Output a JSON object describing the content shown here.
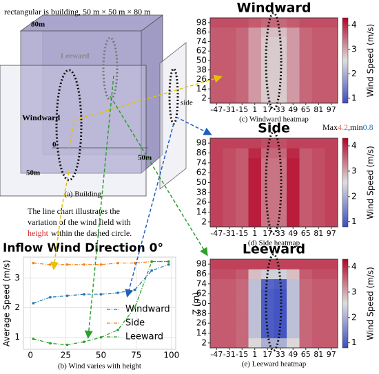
{
  "diagram": {
    "heading": "rectangular is building, 50 m  × 50 m × 80 m",
    "labels": {
      "height": "80m",
      "leeward": "Leeward",
      "windward": "Windward",
      "side": "side",
      "origin": "0",
      "width_left": "50m",
      "width_right": "50m"
    },
    "caption": "(a) Building",
    "note": {
      "lines": [
        "The line chart illustrates the",
        "variation of the wind field with"
      ],
      "highlight": "height",
      "after": "within the dashed circle."
    },
    "range_note": {
      "max_label": "Max",
      "max": 4.2,
      "min_label": ",min",
      "min": 0.8
    }
  },
  "chart_data": [
    {
      "type": "line",
      "title": "Inflow Wind Direction 0°",
      "ylabel": "Average Speed (m/s)",
      "caption": "(b) Wind varies with height",
      "x": [
        2,
        14,
        26,
        38,
        50,
        62,
        74,
        86,
        98
      ],
      "series": [
        {
          "name": "Windward",
          "color": "#1f77b4",
          "values": [
            2.15,
            2.35,
            2.4,
            2.45,
            2.45,
            2.5,
            2.6,
            3.25,
            3.45
          ]
        },
        {
          "name": "Side",
          "color": "#ff7f0e",
          "values": [
            3.5,
            3.45,
            3.45,
            3.45,
            3.45,
            3.5,
            3.5,
            3.55,
            3.55
          ]
        },
        {
          "name": "Leeward",
          "color": "#2ca02c",
          "values": [
            0.95,
            0.8,
            0.75,
            0.85,
            1.0,
            1.25,
            2.0,
            3.55,
            3.55
          ]
        }
      ],
      "xlim": [
        -5,
        103
      ],
      "xticks": [
        0,
        25,
        50,
        75,
        100
      ],
      "ylim": [
        0.6,
        3.7
      ],
      "yticks": [
        1,
        2,
        3
      ],
      "grid": true,
      "legend": "lower-right"
    },
    {
      "type": "heatmap",
      "title": "Windward",
      "caption": "(c) Windward heatmap",
      "clabel": "Wind Speed (m/s)",
      "colormap": "coolwarm",
      "x": [
        -47,
        -31,
        -15,
        1,
        17,
        33,
        49,
        65,
        81,
        97
      ],
      "y": [
        2,
        14,
        26,
        38,
        50,
        62,
        74,
        86,
        98
      ],
      "z": [
        [
          3.6,
          3.6,
          3.5,
          3.1,
          2.7,
          2.7,
          3.1,
          3.5,
          3.6,
          3.6
        ],
        [
          3.6,
          3.6,
          3.5,
          3.1,
          2.7,
          2.7,
          3.1,
          3.5,
          3.6,
          3.6
        ],
        [
          3.6,
          3.6,
          3.5,
          3.1,
          2.7,
          2.7,
          3.1,
          3.5,
          3.6,
          3.6
        ],
        [
          3.6,
          3.6,
          3.5,
          3.1,
          2.7,
          2.7,
          3.1,
          3.5,
          3.6,
          3.6
        ],
        [
          3.6,
          3.6,
          3.5,
          3.1,
          2.7,
          2.7,
          3.1,
          3.5,
          3.6,
          3.6
        ],
        [
          3.6,
          3.6,
          3.5,
          3.1,
          2.7,
          2.7,
          3.1,
          3.5,
          3.6,
          3.6
        ],
        [
          3.6,
          3.6,
          3.5,
          3.1,
          2.7,
          2.7,
          3.1,
          3.5,
          3.6,
          3.6
        ],
        [
          3.6,
          3.6,
          3.5,
          3.1,
          2.8,
          2.8,
          3.1,
          3.5,
          3.6,
          3.6
        ],
        [
          3.7,
          3.7,
          3.7,
          3.6,
          3.5,
          3.5,
          3.6,
          3.7,
          3.7,
          3.7
        ]
      ],
      "clim": [
        0.8,
        4.3
      ],
      "cticks": [
        1,
        2,
        3,
        4
      ]
    },
    {
      "type": "heatmap",
      "title": "Side",
      "caption": "(d) Side heatmap",
      "clabel": "Wind Speed (m/s)",
      "colormap": "coolwarm",
      "x": [
        -47,
        -31,
        -15,
        1,
        17,
        33,
        49,
        65,
        81,
        97
      ],
      "y": [
        2,
        14,
        26,
        38,
        50,
        62,
        74,
        86,
        98
      ],
      "z": [
        [
          3.8,
          3.7,
          3.6,
          4.1,
          3.4,
          3.4,
          4.1,
          3.6,
          3.7,
          3.8
        ],
        [
          3.8,
          3.7,
          3.6,
          4.1,
          3.4,
          3.4,
          4.1,
          3.6,
          3.7,
          3.8
        ],
        [
          3.8,
          3.7,
          3.6,
          4.1,
          3.4,
          3.4,
          4.1,
          3.6,
          3.7,
          3.8
        ],
        [
          3.8,
          3.7,
          3.6,
          4.1,
          3.4,
          3.4,
          4.1,
          3.6,
          3.7,
          3.8
        ],
        [
          3.8,
          3.7,
          3.6,
          4.1,
          3.4,
          3.4,
          4.1,
          3.6,
          3.7,
          3.8
        ],
        [
          3.8,
          3.7,
          3.6,
          4.1,
          3.4,
          3.4,
          4.1,
          3.6,
          3.7,
          3.8
        ],
        [
          3.8,
          3.7,
          3.6,
          4.1,
          3.4,
          3.4,
          4.1,
          3.6,
          3.7,
          3.8
        ],
        [
          3.8,
          3.7,
          3.6,
          4.0,
          3.5,
          3.5,
          4.0,
          3.6,
          3.7,
          3.8
        ],
        [
          3.8,
          3.8,
          3.8,
          3.8,
          3.7,
          3.7,
          3.8,
          3.8,
          3.8,
          3.8
        ]
      ],
      "clim": [
        0.8,
        4.3
      ],
      "cticks": [
        1,
        2,
        3,
        4
      ]
    },
    {
      "type": "heatmap",
      "title": "Leeward",
      "caption": "(e) Leeward heatmap",
      "ylabel": "Z (m)",
      "clabel": "Wind Speed (m/s)",
      "colormap": "coolwarm",
      "x": [
        -47,
        -31,
        -15,
        1,
        17,
        33,
        49,
        65,
        81,
        97
      ],
      "y": [
        2,
        14,
        26,
        38,
        50,
        62,
        74,
        86,
        98
      ],
      "z": [
        [
          3.6,
          3.6,
          3.5,
          2.6,
          2.0,
          2.0,
          2.6,
          3.5,
          3.6,
          3.6
        ],
        [
          3.6,
          3.6,
          3.5,
          2.2,
          1.0,
          0.9,
          2.2,
          3.5,
          3.6,
          3.6
        ],
        [
          3.6,
          3.6,
          3.5,
          2.2,
          1.0,
          0.9,
          2.2,
          3.5,
          3.6,
          3.6
        ],
        [
          3.6,
          3.6,
          3.5,
          2.2,
          1.0,
          0.9,
          2.2,
          3.5,
          3.6,
          3.6
        ],
        [
          3.6,
          3.6,
          3.5,
          2.2,
          1.0,
          0.9,
          2.2,
          3.5,
          3.6,
          3.6
        ],
        [
          3.6,
          3.6,
          3.5,
          2.2,
          1.0,
          0.9,
          2.2,
          3.5,
          3.6,
          3.6
        ],
        [
          3.6,
          3.6,
          3.5,
          2.2,
          1.1,
          1.0,
          2.2,
          3.5,
          3.6,
          3.6
        ],
        [
          3.7,
          3.7,
          3.6,
          2.8,
          2.4,
          2.4,
          2.8,
          3.6,
          3.7,
          3.7
        ],
        [
          3.8,
          3.8,
          3.8,
          3.8,
          3.8,
          3.8,
          3.8,
          3.8,
          3.8,
          3.8
        ]
      ],
      "clim": [
        0.8,
        4.3
      ],
      "cticks": [
        1,
        2,
        3,
        4
      ]
    }
  ]
}
